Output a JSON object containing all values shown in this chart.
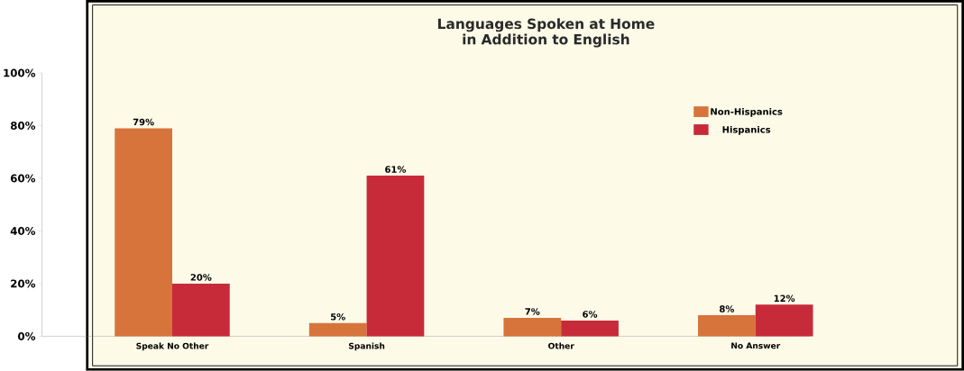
{
  "chart_data": {
    "type": "bar",
    "title": "Languages Spoken at Home\nin Addition to English",
    "categories": [
      "Speak No Other",
      "Spanish",
      "Other",
      "No Answer"
    ],
    "series": [
      {
        "name": "Non-Hispanics",
        "color": "#d7743c",
        "values": [
          79,
          5,
          7,
          8
        ],
        "value_labels": [
          "79%",
          "5%",
          "7%",
          "8%"
        ]
      },
      {
        "name": "Hispanics",
        "color": "#c72b3a",
        "values": [
          20,
          61,
          6,
          12
        ],
        "value_labels": [
          "20%",
          "61%",
          "6%",
          "12%"
        ]
      }
    ],
    "ylim": [
      0,
      100
    ],
    "yticks": [
      {
        "value": 0,
        "label": "0%"
      },
      {
        "value": 20,
        "label": "20%"
      },
      {
        "value": 40,
        "label": "40%"
      },
      {
        "value": 60,
        "label": "60%"
      },
      {
        "value": 80,
        "label": "80%"
      },
      {
        "value": 100,
        "label": "100%"
      }
    ],
    "legend": "top right",
    "grid": false
  }
}
